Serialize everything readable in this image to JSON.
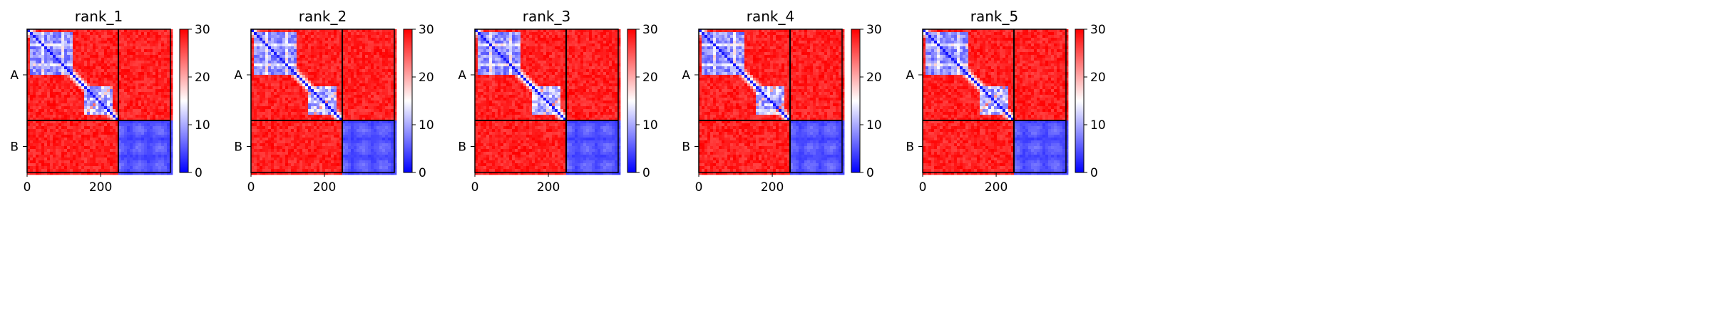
{
  "chart_data": [
    {
      "type": "heatmap",
      "title": "rank_1",
      "chains": [
        "A",
        "B"
      ],
      "xticks": [
        0,
        200
      ],
      "xlim": [
        0,
        390
      ],
      "colorbar": {
        "min": 0,
        "max": 30,
        "ticks": [
          0,
          10,
          20,
          30
        ],
        "colors": {
          "low": "#0000ff",
          "mid": "#ffffff",
          "high": "#ff0000"
        }
      }
    },
    {
      "type": "heatmap",
      "title": "rank_2",
      "chains": [
        "A",
        "B"
      ],
      "xticks": [
        0,
        200
      ],
      "xlim": [
        0,
        390
      ],
      "colorbar": {
        "min": 0,
        "max": 30,
        "ticks": [
          0,
          10,
          20,
          30
        ],
        "colors": {
          "low": "#0000ff",
          "mid": "#ffffff",
          "high": "#ff0000"
        }
      }
    },
    {
      "type": "heatmap",
      "title": "rank_3",
      "chains": [
        "A",
        "B"
      ],
      "xticks": [
        0,
        200
      ],
      "xlim": [
        0,
        390
      ],
      "colorbar": {
        "min": 0,
        "max": 30,
        "ticks": [
          0,
          10,
          20,
          30
        ],
        "colors": {
          "low": "#0000ff",
          "mid": "#ffffff",
          "high": "#ff0000"
        }
      }
    },
    {
      "type": "heatmap",
      "title": "rank_4",
      "chains": [
        "A",
        "B"
      ],
      "xticks": [
        0,
        200
      ],
      "xlim": [
        0,
        390
      ],
      "colorbar": {
        "min": 0,
        "max": 30,
        "ticks": [
          0,
          10,
          20,
          30
        ],
        "colors": {
          "low": "#0000ff",
          "mid": "#ffffff",
          "high": "#ff0000"
        }
      }
    },
    {
      "type": "heatmap",
      "title": "rank_5",
      "chains": [
        "A",
        "B"
      ],
      "xticks": [
        0,
        200
      ],
      "xlim": [
        0,
        390
      ],
      "colorbar": {
        "min": 0,
        "max": 30,
        "ticks": [
          0,
          10,
          20,
          30
        ],
        "colors": {
          "low": "#0000ff",
          "mid": "#ffffff",
          "high": "#ff0000"
        }
      }
    }
  ]
}
